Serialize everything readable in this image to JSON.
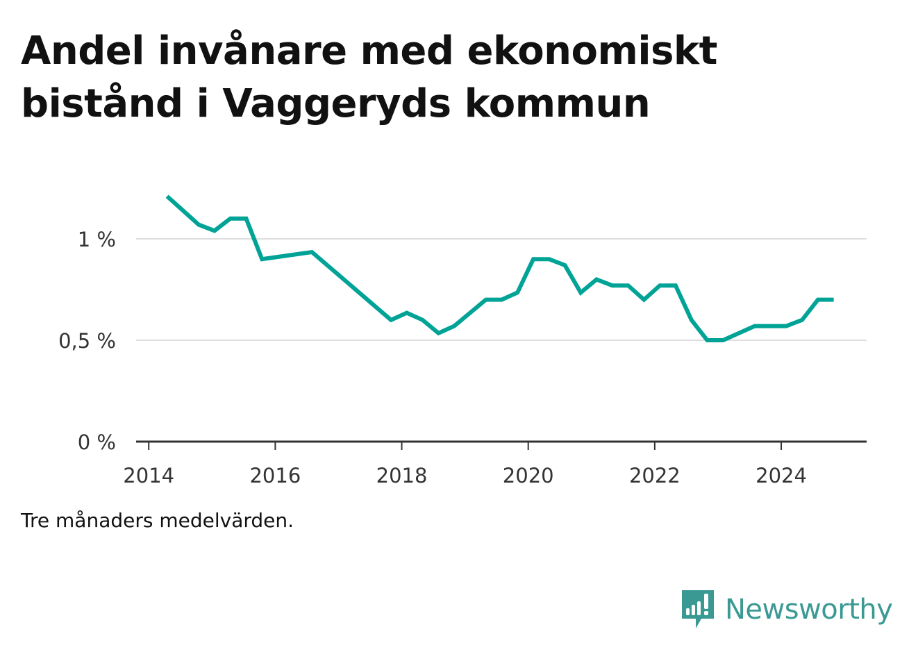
{
  "title": "Andel invånare med ekonomiskt bistånd i Vaggeryds kommun",
  "note": "Tre månaders medelvärden.",
  "brand": {
    "name": "Newsworthy",
    "icon": "newsworthy-logo-icon",
    "color": "#3a9a93"
  },
  "chart_data": {
    "type": "line",
    "title": "Andel invånare med ekonomiskt bistånd i Vaggeryds kommun",
    "xlabel": "",
    "ylabel": "",
    "xlim": [
      2013.8,
      2025.35
    ],
    "ylim": [
      0,
      1.2
    ],
    "xticks": [
      {
        "value": 2014,
        "label": "2014"
      },
      {
        "value": 2016,
        "label": "2016"
      },
      {
        "value": 2018,
        "label": "2018"
      },
      {
        "value": 2020,
        "label": "2020"
      },
      {
        "value": 2022,
        "label": "2022"
      },
      {
        "value": 2024,
        "label": "2024"
      }
    ],
    "yticks": [
      {
        "value": 0,
        "label": "0 %"
      },
      {
        "value": 0.5,
        "label": "0,5 %"
      },
      {
        "value": 1,
        "label": "1 %"
      }
    ],
    "grid": "horizontal",
    "legend": "none",
    "series": [
      {
        "color": "#00a396",
        "points": [
          [
            2014.29,
            1.21
          ],
          [
            2014.54,
            1.14
          ],
          [
            2014.79,
            1.07
          ],
          [
            2015.04,
            1.04
          ],
          [
            2015.29,
            1.1
          ],
          [
            2015.54,
            1.1
          ],
          [
            2015.79,
            0.9
          ],
          [
            2016.58,
            0.935
          ],
          [
            2017.83,
            0.6
          ],
          [
            2018.08,
            0.635
          ],
          [
            2018.33,
            0.6
          ],
          [
            2018.58,
            0.535
          ],
          [
            2018.83,
            0.57
          ],
          [
            2019.33,
            0.7
          ],
          [
            2019.58,
            0.7
          ],
          [
            2019.83,
            0.735
          ],
          [
            2020.08,
            0.9
          ],
          [
            2020.33,
            0.9
          ],
          [
            2020.58,
            0.87
          ],
          [
            2020.83,
            0.735
          ],
          [
            2021.08,
            0.8
          ],
          [
            2021.33,
            0.77
          ],
          [
            2021.58,
            0.77
          ],
          [
            2021.83,
            0.7
          ],
          [
            2022.08,
            0.77
          ],
          [
            2022.33,
            0.77
          ],
          [
            2022.58,
            0.6
          ],
          [
            2022.83,
            0.5
          ],
          [
            2023.08,
            0.5
          ],
          [
            2023.58,
            0.57
          ],
          [
            2023.83,
            0.57
          ],
          [
            2024.08,
            0.57
          ],
          [
            2024.33,
            0.6
          ],
          [
            2024.58,
            0.7
          ],
          [
            2024.83,
            0.7
          ]
        ]
      }
    ]
  }
}
